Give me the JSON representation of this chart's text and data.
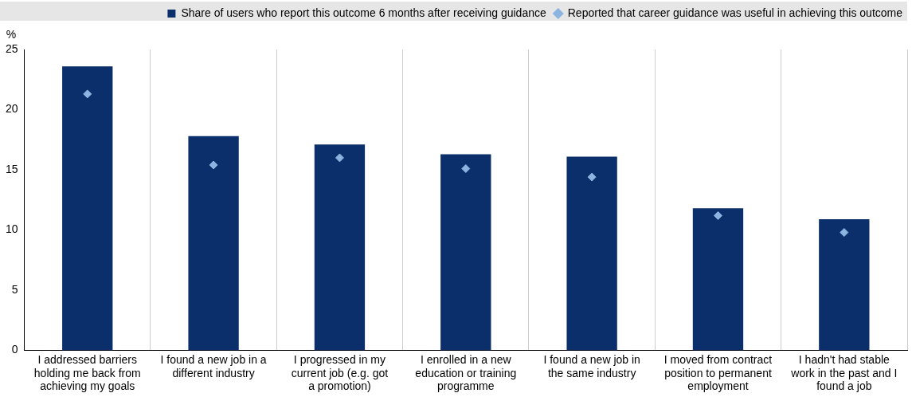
{
  "chart_data": {
    "type": "bar",
    "ylabel": "%",
    "categories": [
      "I addressed barriers holding me back from achieving my goals",
      "I found a new job in a different industry",
      "I progressed in my current job (e.g. got a promotion)",
      "I enrolled in a new education or training programme",
      "I found a new job in the same industry",
      "I moved from contract position to permanent employment",
      "I hadn't had stable work in the past and I found a job"
    ],
    "series": [
      {
        "name": "Share of users who report this outcome 6 months after receiving guidance",
        "color": "#0b2f6b",
        "values": [
          23.6,
          17.8,
          17.1,
          16.3,
          16.1,
          11.8,
          10.9
        ]
      },
      {
        "name": "Reported that career guidance was useful in achieving this outcome",
        "type": "scatter",
        "color": "#8cb4e0",
        "x": [
          "I addressed barriers holding me back from achieving my goals",
          "I found a new job in a different industry",
          "I progressed in my current job (e.g. got a promotion)",
          "I enrolled in a new education or training programme",
          "I found a new job in the same industry",
          "I moved from contract position to permanent employment",
          "I hadn't had stable work in the past and I found a job"
        ],
        "values": [
          21.3,
          15.4,
          16.0,
          15.1,
          14.4,
          11.2,
          9.8
        ]
      }
    ],
    "ylim": [
      0,
      25
    ],
    "yticks": [
      0,
      5,
      10,
      15,
      20,
      25
    ],
    "grid": "x",
    "legend": "top",
    "marker": "diamond"
  }
}
